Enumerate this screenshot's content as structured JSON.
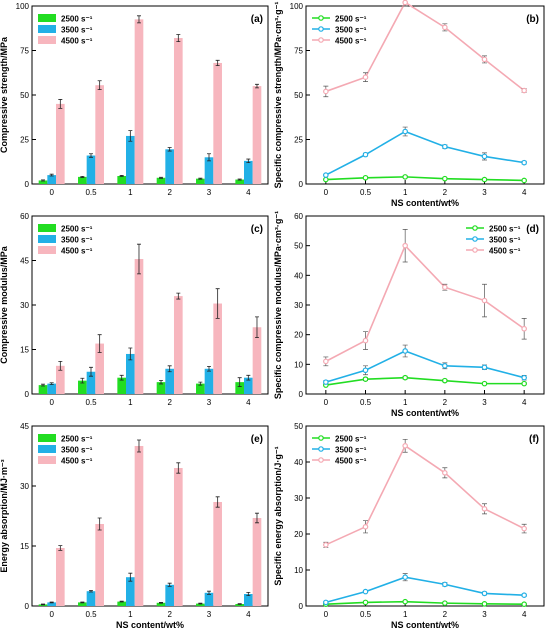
{
  "colors": {
    "s2500": "#22dd22",
    "s3500": "#22b0e6",
    "s4500": "#f7b6be"
  },
  "chart_data": [
    {
      "panel": "(a)",
      "type": "bar",
      "categories": [
        "0",
        "0.5",
        "1",
        "2",
        "3",
        "4"
      ],
      "xlabel": "",
      "ylabel": "Compressive strength/MPa",
      "ylim": [
        0,
        100
      ],
      "yticks": [
        0,
        25,
        50,
        75,
        100
      ],
      "legend": "top-left",
      "grid": false,
      "series": [
        {
          "name": "2500 s⁻¹",
          "values": [
            2,
            4,
            4.5,
            3.5,
            3,
            2.5
          ],
          "errors": [
            0.3,
            0.3,
            0.3,
            0.3,
            0.3,
            0.3
          ]
        },
        {
          "name": "3500 s⁻¹",
          "values": [
            5,
            16,
            27,
            19.5,
            15,
            13
          ],
          "errors": [
            0.5,
            1,
            3,
            1,
            2,
            1
          ]
        },
        {
          "name": "4500 s⁻¹",
          "values": [
            45,
            55.5,
            92.5,
            82,
            68,
            55
          ],
          "errors": [
            2.5,
            2.5,
            2,
            2,
            1.5,
            1
          ]
        }
      ]
    },
    {
      "panel": "(b)",
      "type": "line",
      "categories": [
        "0",
        "0.5",
        "1",
        "2",
        "3",
        "4"
      ],
      "xlabel": "NS content/wt%",
      "ylabel": "Specific compressive strength/MPa·cm³·g⁻¹",
      "ylim": [
        0,
        100
      ],
      "yticks": [
        0,
        25,
        50,
        75,
        100
      ],
      "legend": "top-left",
      "grid": false,
      "series": [
        {
          "name": "2500 s⁻¹",
          "values": [
            2.5,
            3.5,
            4,
            3,
            2.5,
            2
          ],
          "errors": [
            0.3,
            0.3,
            0.5,
            0.3,
            0.3,
            0.3
          ]
        },
        {
          "name": "3500 s⁻¹",
          "values": [
            5,
            16.5,
            29.5,
            21,
            15.5,
            12
          ],
          "errors": [
            0.5,
            0.8,
            2.5,
            1,
            2,
            0.8
          ]
        },
        {
          "name": "4500 s⁻¹",
          "values": [
            52,
            60,
            102,
            88,
            70,
            52.5
          ],
          "errors": [
            3,
            2.5,
            2,
            2,
            2,
            1
          ]
        }
      ]
    },
    {
      "panel": "(c)",
      "type": "bar",
      "categories": [
        "0",
        "0.5",
        "1",
        "2",
        "3",
        "4"
      ],
      "xlabel": "",
      "ylabel": "Compressive modulus/MPa",
      "ylim": [
        0,
        60
      ],
      "yticks": [
        0,
        15,
        30,
        45,
        60
      ],
      "legend": "top-left",
      "grid": false,
      "series": [
        {
          "name": "2500 s⁻¹",
          "values": [
            3,
            4.5,
            5.5,
            4,
            3.5,
            4
          ],
          "errors": [
            0.3,
            0.8,
            0.8,
            0.6,
            0.5,
            1.5
          ]
        },
        {
          "name": "3500 s⁻¹",
          "values": [
            3.5,
            7.5,
            13.5,
            8.5,
            8.5,
            5.5
          ],
          "errors": [
            0.3,
            1.5,
            2,
            1,
            0.8,
            0.8
          ]
        },
        {
          "name": "4500 s⁻¹",
          "values": [
            9.5,
            17,
            45.5,
            33,
            30.5,
            22.5
          ],
          "errors": [
            1.5,
            3,
            5,
            1,
            5,
            3.5
          ]
        }
      ]
    },
    {
      "panel": "(d)",
      "type": "line",
      "categories": [
        "0",
        "0.5",
        "1",
        "2",
        "3",
        "4"
      ],
      "xlabel": "NS content/wt%",
      "ylabel": "Specific compressive modulus/MPa·cm³·g⁻¹",
      "ylim": [
        0,
        60
      ],
      "yticks": [
        0,
        10,
        20,
        30,
        40,
        50,
        60
      ],
      "legend": "top-right",
      "grid": false,
      "series": [
        {
          "name": "2500 s⁻¹",
          "values": [
            3,
            5,
            5.5,
            4.5,
            3.5,
            3.5
          ],
          "errors": [
            0.3,
            0.5,
            0.5,
            0.4,
            0.3,
            0.3
          ]
        },
        {
          "name": "3500 s⁻¹",
          "values": [
            4,
            8,
            14.5,
            9.5,
            9,
            5.5
          ],
          "errors": [
            0.5,
            1.5,
            2,
            1,
            0.8,
            0.8
          ]
        },
        {
          "name": "4500 s⁻¹",
          "values": [
            11,
            18,
            50,
            36,
            31.5,
            22
          ],
          "errors": [
            1.5,
            3,
            5.5,
            1,
            5.5,
            3.5
          ]
        }
      ]
    },
    {
      "panel": "(e)",
      "type": "bar",
      "categories": [
        "0",
        "0.5",
        "1",
        "2",
        "3",
        "4"
      ],
      "xlabel": "NS content/wt%",
      "ylabel": "Energy absorption/MJ·m⁻³",
      "ylim": [
        0,
        45
      ],
      "yticks": [
        0,
        15,
        30,
        45
      ],
      "legend": "top-left",
      "grid": false,
      "series": [
        {
          "name": "2500 s⁻¹",
          "values": [
            0.4,
            0.9,
            1.1,
            0.8,
            0.6,
            0.5
          ],
          "errors": [
            0.1,
            0.1,
            0.1,
            0.1,
            0.1,
            0.1
          ]
        },
        {
          "name": "3500 s⁻¹",
          "values": [
            0.9,
            3.7,
            7.2,
            5.3,
            3.3,
            3
          ],
          "errors": [
            0.1,
            0.2,
            1,
            0.4,
            0.4,
            0.4
          ]
        },
        {
          "name": "4500 s⁻¹",
          "values": [
            14.5,
            20.5,
            40,
            34.5,
            26,
            22
          ],
          "errors": [
            0.6,
            1.5,
            1.5,
            1.3,
            1.3,
            1.2
          ]
        }
      ]
    },
    {
      "panel": "(f)",
      "type": "line",
      "categories": [
        "0",
        "0.5",
        "1",
        "2",
        "3",
        "4"
      ],
      "xlabel": "NS content/wt%",
      "ylabel": "Specific energy absorption/J·g⁻¹",
      "ylim": [
        0,
        50
      ],
      "yticks": [
        0,
        10,
        20,
        30,
        40,
        50
      ],
      "legend": "top-left",
      "grid": false,
      "series": [
        {
          "name": "2500 s⁻¹",
          "values": [
            0.5,
            1,
            1.2,
            0.8,
            0.6,
            0.5
          ],
          "errors": [
            0.1,
            0.1,
            0.2,
            0.1,
            0.1,
            0.1
          ]
        },
        {
          "name": "3500 s⁻¹",
          "values": [
            1,
            4,
            8,
            6,
            3.5,
            3
          ],
          "errors": [
            0.2,
            0.3,
            1,
            0.5,
            0.4,
            0.3
          ]
        },
        {
          "name": "4500 s⁻¹",
          "values": [
            17,
            22,
            44.5,
            37,
            27,
            21.5
          ],
          "errors": [
            0.7,
            1.7,
            1.8,
            1.4,
            1.4,
            1.2
          ]
        }
      ]
    }
  ]
}
